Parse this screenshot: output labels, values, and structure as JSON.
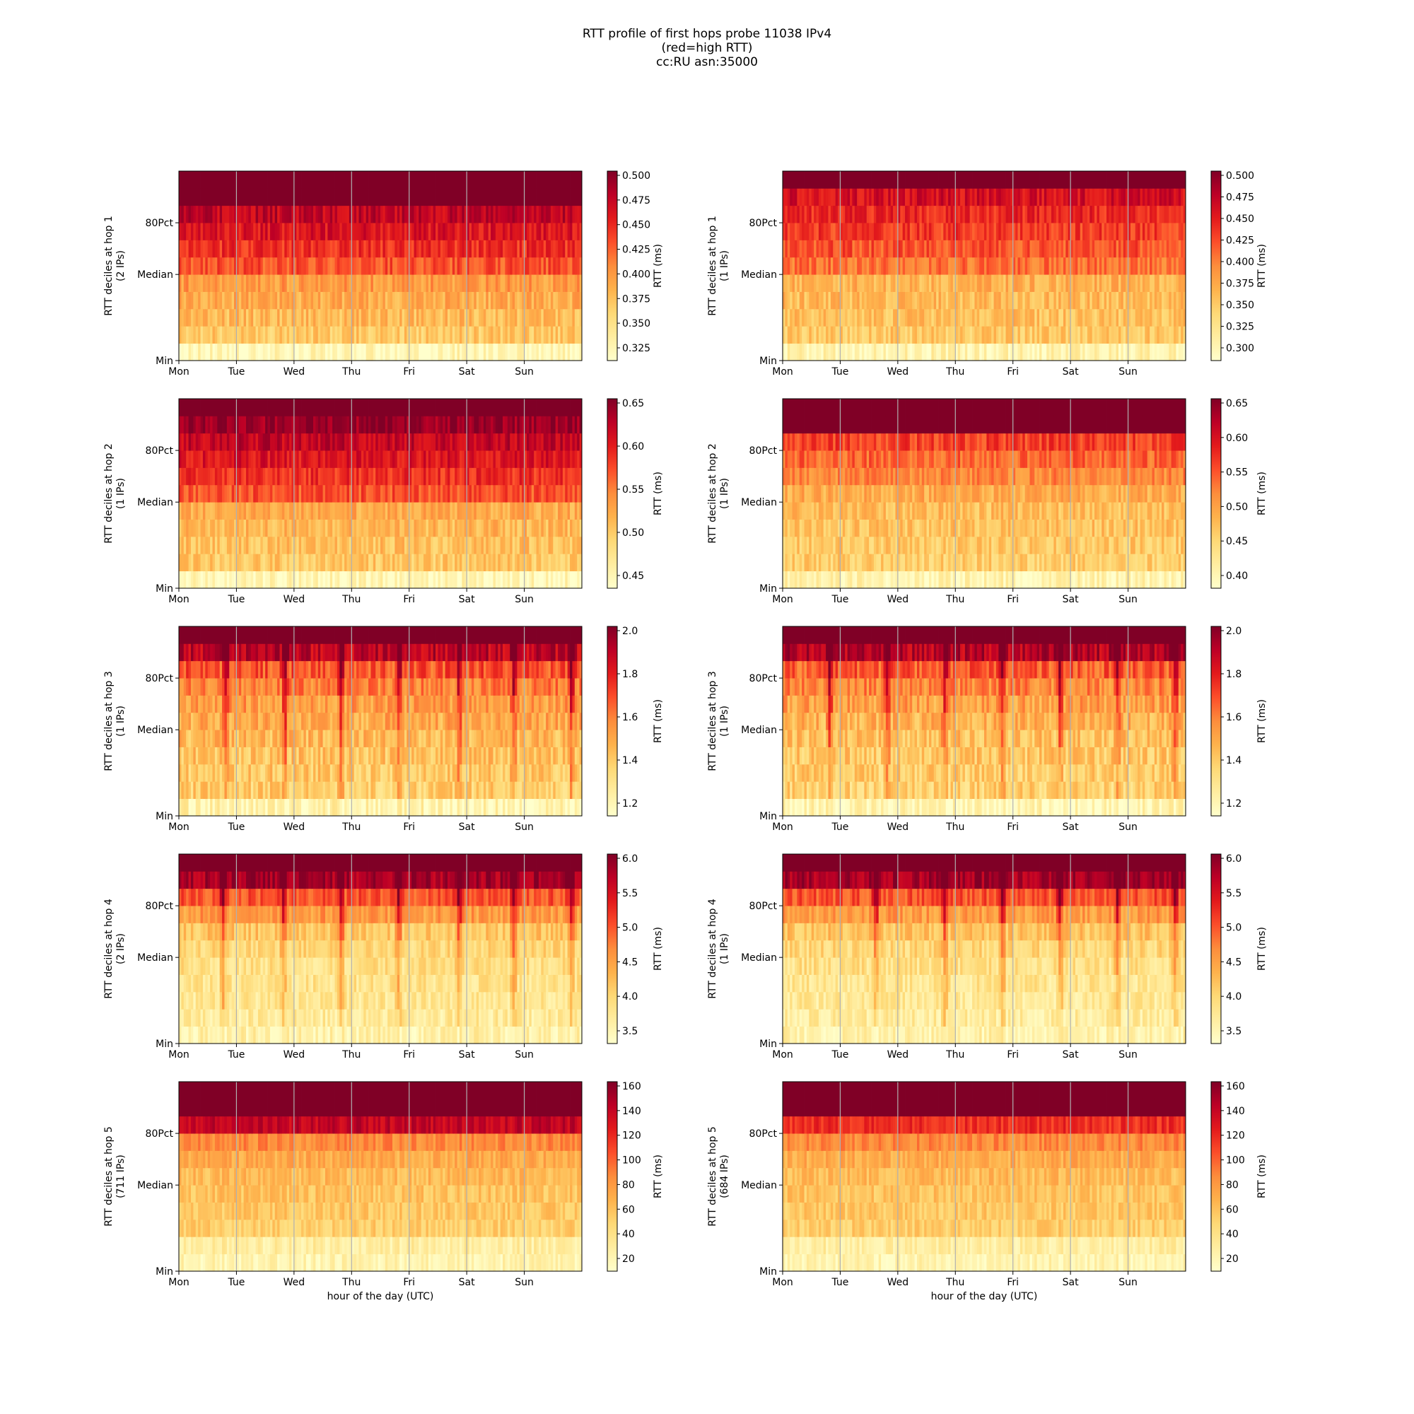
{
  "figure": {
    "title_lines": [
      "RTT profile of first hops probe 11038 IPv4",
      "(red=high RTT)",
      "cc:RU asn:35000"
    ]
  },
  "chart_data": [
    {
      "type": "heatmap",
      "column": "left",
      "hop": 1,
      "ylabel": "RTT deciles at hop 1",
      "ylabel2": "(2 IPs)",
      "xlabel": "",
      "xticks": [
        "Mon",
        "Tue",
        "Wed",
        "Thu",
        "Fri",
        "Sat",
        "Sun"
      ],
      "yticks": [
        "Min",
        "Median",
        "80Pct"
      ],
      "colorbar_label": "RTT (ms)",
      "colorbar_ticks": [
        "0.325",
        "0.350",
        "0.375",
        "0.400",
        "0.425",
        "0.450",
        "0.475",
        "0.500"
      ],
      "colormap": "YlOrRd",
      "decile_intensity": [
        0.06,
        0.3,
        0.35,
        0.4,
        0.45,
        0.62,
        0.7,
        0.78,
        0.85,
        1,
        1
      ],
      "spikes": [],
      "noise": 0.1
    },
    {
      "type": "heatmap",
      "column": "right",
      "hop": 1,
      "ylabel": "RTT deciles at hop 1",
      "ylabel2": "(1 IPs)",
      "xlabel": "",
      "xticks": [
        "Mon",
        "Tue",
        "Wed",
        "Thu",
        "Fri",
        "Sat",
        "Sun"
      ],
      "yticks": [
        "Min",
        "Median",
        "80Pct"
      ],
      "colorbar_label": "RTT (ms)",
      "colorbar_ticks": [
        "0.300",
        "0.325",
        "0.350",
        "0.375",
        "0.400",
        "0.425",
        "0.450",
        "0.475",
        "0.500"
      ],
      "colormap": "YlOrRd",
      "decile_intensity": [
        0.08,
        0.3,
        0.33,
        0.35,
        0.38,
        0.55,
        0.62,
        0.67,
        0.72,
        0.8,
        1
      ],
      "spikes": [],
      "noise": 0.1
    },
    {
      "type": "heatmap",
      "column": "left",
      "hop": 2,
      "ylabel": "RTT deciles at hop 2",
      "ylabel2": "(1 IPs)",
      "xlabel": "",
      "xticks": [
        "Mon",
        "Tue",
        "Wed",
        "Thu",
        "Fri",
        "Sat",
        "Sun"
      ],
      "yticks": [
        "Min",
        "Median",
        "80Pct"
      ],
      "colorbar_label": "RTT (ms)",
      "colorbar_ticks": [
        "0.45",
        "0.50",
        "0.55",
        "0.60",
        "0.65"
      ],
      "colormap": "YlOrRd",
      "decile_intensity": [
        0.06,
        0.3,
        0.33,
        0.36,
        0.4,
        0.62,
        0.7,
        0.78,
        0.85,
        0.95,
        1
      ],
      "spikes": [],
      "noise": 0.1
    },
    {
      "type": "heatmap",
      "column": "right",
      "hop": 2,
      "ylabel": "RTT deciles at hop 2",
      "ylabel2": "(1 IPs)",
      "xlabel": "",
      "xticks": [
        "Mon",
        "Tue",
        "Wed",
        "Thu",
        "Fri",
        "Sat",
        "Sun"
      ],
      "yticks": [
        "Min",
        "Median",
        "80Pct"
      ],
      "colorbar_label": "RTT (ms)",
      "colorbar_ticks": [
        "0.40",
        "0.45",
        "0.50",
        "0.55",
        "0.60",
        "0.65"
      ],
      "colormap": "YlOrRd",
      "decile_intensity": [
        0.08,
        0.28,
        0.3,
        0.32,
        0.34,
        0.4,
        0.5,
        0.58,
        0.66,
        1,
        1
      ],
      "spikes": [],
      "noise": 0.1
    },
    {
      "type": "heatmap",
      "column": "left",
      "hop": 3,
      "ylabel": "RTT deciles at hop 3",
      "ylabel2": "(1 IPs)",
      "xlabel": "",
      "xticks": [
        "Mon",
        "Tue",
        "Wed",
        "Thu",
        "Fri",
        "Sat",
        "Sun"
      ],
      "yticks": [
        "Min",
        "Median",
        "80Pct"
      ],
      "colorbar_label": "RTT (ms)",
      "colorbar_ticks": [
        "1.2",
        "1.4",
        "1.6",
        "1.8",
        "2.0"
      ],
      "colormap": "YlOrRd",
      "decile_intensity": [
        0.08,
        0.28,
        0.3,
        0.32,
        0.36,
        0.4,
        0.45,
        0.52,
        0.62,
        0.86,
        1
      ],
      "spikes": [
        0.8,
        1.82,
        2.8,
        3.8,
        4.85,
        5.8,
        6.8
      ],
      "noise": 0.12
    },
    {
      "type": "heatmap",
      "column": "right",
      "hop": 3,
      "ylabel": "RTT deciles at hop 3",
      "ylabel2": "(1 IPs)",
      "xlabel": "",
      "xticks": [
        "Mon",
        "Tue",
        "Wed",
        "Thu",
        "Fri",
        "Sat",
        "Sun"
      ],
      "yticks": [
        "Min",
        "Median",
        "80Pct"
      ],
      "colorbar_label": "RTT (ms)",
      "colorbar_ticks": [
        "1.2",
        "1.4",
        "1.6",
        "1.8",
        "2.0"
      ],
      "colormap": "YlOrRd",
      "decile_intensity": [
        0.06,
        0.26,
        0.28,
        0.3,
        0.33,
        0.38,
        0.43,
        0.5,
        0.6,
        0.88,
        1
      ],
      "spikes": [
        0.8,
        1.8,
        2.8,
        3.8,
        4.8,
        5.8,
        6.8
      ],
      "noise": 0.12
    },
    {
      "type": "heatmap",
      "column": "left",
      "hop": 4,
      "ylabel": "RTT deciles at hop 4",
      "ylabel2": "(2 IPs)",
      "xlabel": "",
      "xticks": [
        "Mon",
        "Tue",
        "Wed",
        "Thu",
        "Fri",
        "Sat",
        "Sun"
      ],
      "yticks": [
        "Min",
        "Median",
        "80Pct"
      ],
      "colorbar_label": "RTT (ms)",
      "colorbar_ticks": [
        "3.5",
        "4.0",
        "4.5",
        "5.0",
        "5.5",
        "6.0"
      ],
      "colormap": "YlOrRd",
      "decile_intensity": [
        0.1,
        0.14,
        0.16,
        0.18,
        0.2,
        0.24,
        0.32,
        0.45,
        0.62,
        0.92,
        1
      ],
      "spikes": [
        0.75,
        1.8,
        2.8,
        3.8,
        4.85,
        5.8,
        6.8
      ],
      "noise": 0.1
    },
    {
      "type": "heatmap",
      "column": "right",
      "hop": 4,
      "ylabel": "RTT deciles at hop 4",
      "ylabel2": "(1 IPs)",
      "xlabel": "",
      "xticks": [
        "Mon",
        "Tue",
        "Wed",
        "Thu",
        "Fri",
        "Sat",
        "Sun"
      ],
      "yticks": [
        "Min",
        "Median",
        "80Pct"
      ],
      "colorbar_label": "RTT (ms)",
      "colorbar_ticks": [
        "3.5",
        "4.0",
        "4.5",
        "5.0",
        "5.5",
        "6.0"
      ],
      "colormap": "YlOrRd",
      "decile_intensity": [
        0.1,
        0.13,
        0.15,
        0.17,
        0.2,
        0.24,
        0.32,
        0.45,
        0.62,
        0.92,
        1
      ],
      "spikes": [
        1.6,
        2.8,
        3.8,
        4.8,
        5.8,
        6.8
      ],
      "noise": 0.1
    },
    {
      "type": "heatmap",
      "column": "left",
      "hop": 5,
      "ylabel": "RTT deciles at hop 5",
      "ylabel2": "(711 IPs)",
      "xlabel": "hour of the day (UTC)",
      "xticks": [
        "Mon",
        "Tue",
        "Wed",
        "Thu",
        "Fri",
        "Sat",
        "Sun"
      ],
      "yticks": [
        "Min",
        "Median",
        "80Pct"
      ],
      "colorbar_label": "RTT (ms)",
      "colorbar_ticks": [
        "20",
        "40",
        "60",
        "80",
        "100",
        "120",
        "140",
        "160"
      ],
      "colormap": "YlOrRd",
      "decile_intensity": [
        0.08,
        0.12,
        0.28,
        0.3,
        0.32,
        0.35,
        0.4,
        0.5,
        0.85,
        1,
        1
      ],
      "spikes": [],
      "noise": 0.08
    },
    {
      "type": "heatmap",
      "column": "right",
      "hop": 5,
      "ylabel": "RTT deciles at hop 5",
      "ylabel2": "(684 IPs)",
      "xlabel": "hour of the day (UTC)",
      "xticks": [
        "Mon",
        "Tue",
        "Wed",
        "Thu",
        "Fri",
        "Sat",
        "Sun"
      ],
      "yticks": [
        "Min",
        "Median",
        "80Pct"
      ],
      "colorbar_label": "RTT (ms)",
      "colorbar_ticks": [
        "20",
        "40",
        "60",
        "80",
        "100",
        "120",
        "140",
        "160"
      ],
      "colormap": "YlOrRd",
      "decile_intensity": [
        0.08,
        0.12,
        0.28,
        0.3,
        0.32,
        0.35,
        0.4,
        0.5,
        0.7,
        1,
        1
      ],
      "spikes": [],
      "noise": 0.08
    }
  ]
}
